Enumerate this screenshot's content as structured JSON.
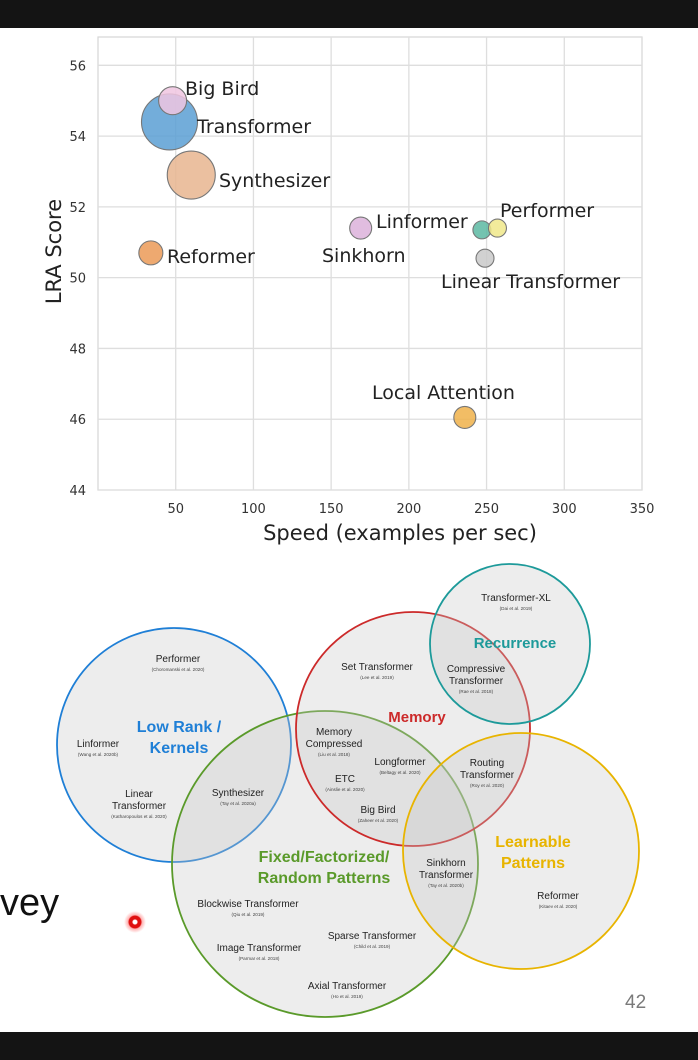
{
  "chart_data": {
    "type": "scatter",
    "xlabel": "Speed (examples per sec)",
    "ylabel": "LRA Score",
    "xlim": [
      0,
      350
    ],
    "ylim": [
      44,
      56.8
    ],
    "xticks": [
      50,
      100,
      150,
      200,
      250,
      300,
      350
    ],
    "yticks": [
      44,
      46,
      48,
      50,
      52,
      54,
      56
    ],
    "grid": true,
    "points": [
      {
        "label": "Big Bird",
        "x": 48,
        "y": 55.0,
        "size": 14,
        "color": "#f0c6e0"
      },
      {
        "label": "Transformer",
        "x": 46,
        "y": 54.4,
        "size": 28,
        "color": "#5a9fd4"
      },
      {
        "label": "Synthesizer",
        "x": 60,
        "y": 52.9,
        "size": 24,
        "color": "#e8b58f"
      },
      {
        "label": "Reformer",
        "x": 34,
        "y": 50.7,
        "size": 12,
        "color": "#eb9a57"
      },
      {
        "label": "Sinkhorn",
        "x": 169,
        "y": 51.4,
        "size": 11,
        "color": "#dcb2da"
      },
      {
        "label": "Linformer",
        "x": 247,
        "y": 51.35,
        "size": 9,
        "color": "#5cb8a2"
      },
      {
        "label": "Performer",
        "x": 257,
        "y": 51.4,
        "size": 9,
        "color": "#f0e88a"
      },
      {
        "label": "Linear Transformer",
        "x": 249,
        "y": 50.55,
        "size": 9,
        "color": "#c9c9c9"
      },
      {
        "label": "Local Attention",
        "x": 236,
        "y": 46.05,
        "size": 11,
        "color": "#f0b24a"
      }
    ]
  },
  "venn": {
    "sets": [
      {
        "label_lines": [
          "Low Rank /",
          "Kernels"
        ],
        "color": "#1f7fd6"
      },
      {
        "label_lines": [
          "Memory"
        ],
        "color": "#cc2a2a"
      },
      {
        "label_lines": [
          "Recurrence"
        ],
        "color": "#1d9a9a"
      },
      {
        "label_lines": [
          "Learnable",
          "Patterns"
        ],
        "color": "#e8b400"
      },
      {
        "label_lines": [
          "Fixed/Factorized/",
          "Random Patterns"
        ],
        "color": "#5a9a2a"
      }
    ],
    "models": [
      {
        "name": "Performer",
        "cite": "(Choromanski et al. 2020)"
      },
      {
        "name": "Linformer",
        "cite": "(Wang et al. 2020b)"
      },
      {
        "name": "Linear Transformer",
        "cite": "(Katharopoulos et al. 2020)"
      },
      {
        "name": "Synthesizer",
        "cite": "(Tay et al. 2020a)"
      },
      {
        "name": "Set Transformer",
        "cite": "(Lee et al. 2019)"
      },
      {
        "name": "Memory Compressed",
        "cite": "(Liu et al. 2018)"
      },
      {
        "name": "Longformer",
        "cite": "(Beltagy et al. 2020)"
      },
      {
        "name": "ETC",
        "cite": "(Ainslie et al. 2020)"
      },
      {
        "name": "Big Bird",
        "cite": "(Zaheer et al. 2020)"
      },
      {
        "name": "Transformer-XL",
        "cite": "(Dai et al. 2019)"
      },
      {
        "name": "Compressive Transformer",
        "cite": "(Rae et al. 2018)"
      },
      {
        "name": "Routing Transformer",
        "cite": "(Roy et al. 2020)"
      },
      {
        "name": "Sinkhorn Transformer",
        "cite": "(Tay et al. 2020b)"
      },
      {
        "name": "Reformer",
        "cite": "(Kitaev et al. 2020)"
      },
      {
        "name": "Blockwise Transformer",
        "cite": "(Qiu et al. 2019)"
      },
      {
        "name": "Image Transformer",
        "cite": "(Parmar et al. 2018)"
      },
      {
        "name": "Sparse Transformer",
        "cite": "(Child et al. 2019)"
      },
      {
        "name": "Axial Transformer",
        "cite": "(Ho et al. 2019)"
      }
    ]
  },
  "slide": {
    "page_number": "42",
    "partial_text": "vey"
  }
}
